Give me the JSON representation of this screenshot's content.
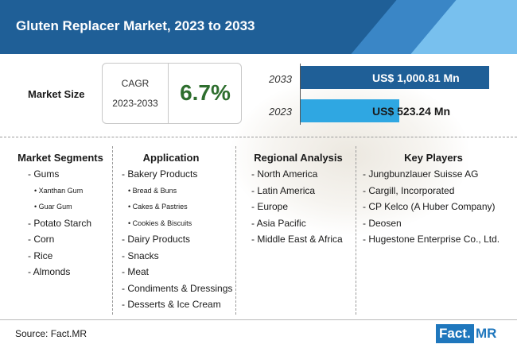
{
  "header": {
    "title": "Gluten Replacer Market, 2023 to 2033"
  },
  "market_size": {
    "label": "Market Size",
    "cagr_label": "CAGR",
    "cagr_period": "2023-2033",
    "cagr_value": "6.7%"
  },
  "bars": [
    {
      "year": "2033",
      "value_text": "US$ 1,000.81 Mn",
      "value": 1000.81,
      "color": "#1f5f97"
    },
    {
      "year": "2023",
      "value_text": "US$ 523.24 Mn",
      "value": 523.24,
      "color": "#2fa7e2"
    }
  ],
  "columns": {
    "segments": {
      "title": "Market Segments",
      "items": [
        {
          "text": "- Gums",
          "sub": false
        },
        {
          "text": "• Xanthan Gum",
          "sub": true
        },
        {
          "text": "• Guar Gum",
          "sub": true
        },
        {
          "text": "- Potato Starch",
          "sub": false
        },
        {
          "text": "- Corn",
          "sub": false
        },
        {
          "text": "- Rice",
          "sub": false
        },
        {
          "text": "- Almonds",
          "sub": false
        }
      ]
    },
    "application": {
      "title": "Application",
      "items": [
        {
          "text": "- Bakery Products",
          "sub": false
        },
        {
          "text": "• Bread & Buns",
          "sub": true
        },
        {
          "text": "• Cakes & Pastries",
          "sub": true
        },
        {
          "text": "• Cookies & Biscuits",
          "sub": true
        },
        {
          "text": "- Dairy Products",
          "sub": false
        },
        {
          "text": "- Snacks",
          "sub": false
        },
        {
          "text": "- Meat",
          "sub": false
        },
        {
          "text": "- Condiments & Dressings",
          "sub": false
        },
        {
          "text": "- Desserts & Ice Cream",
          "sub": false
        }
      ]
    },
    "regional": {
      "title": "Regional Analysis",
      "items": [
        {
          "text": "- North America",
          "sub": false
        },
        {
          "text": "- Latin America",
          "sub": false
        },
        {
          "text": "- Europe",
          "sub": false
        },
        {
          "text": "- Asia Pacific",
          "sub": false
        },
        {
          "text": "- Middle East & Africa",
          "sub": false
        }
      ]
    },
    "players": {
      "title": "Key Players",
      "items": [
        {
          "text": "- Jungbunzlauer Suisse AG",
          "sub": false
        },
        {
          "text": "- Cargill, Incorporated",
          "sub": false
        },
        {
          "text": "- CP Kelco (A Huber Company)",
          "sub": false
        },
        {
          "text": "- Deosen",
          "sub": false
        },
        {
          "text": "- Hugestone Enterprise Co., Ltd.",
          "sub": false
        }
      ]
    }
  },
  "footer": {
    "source": "Source: Fact.MR",
    "logo_fact": "Fact.",
    "logo_mr": "MR"
  }
}
